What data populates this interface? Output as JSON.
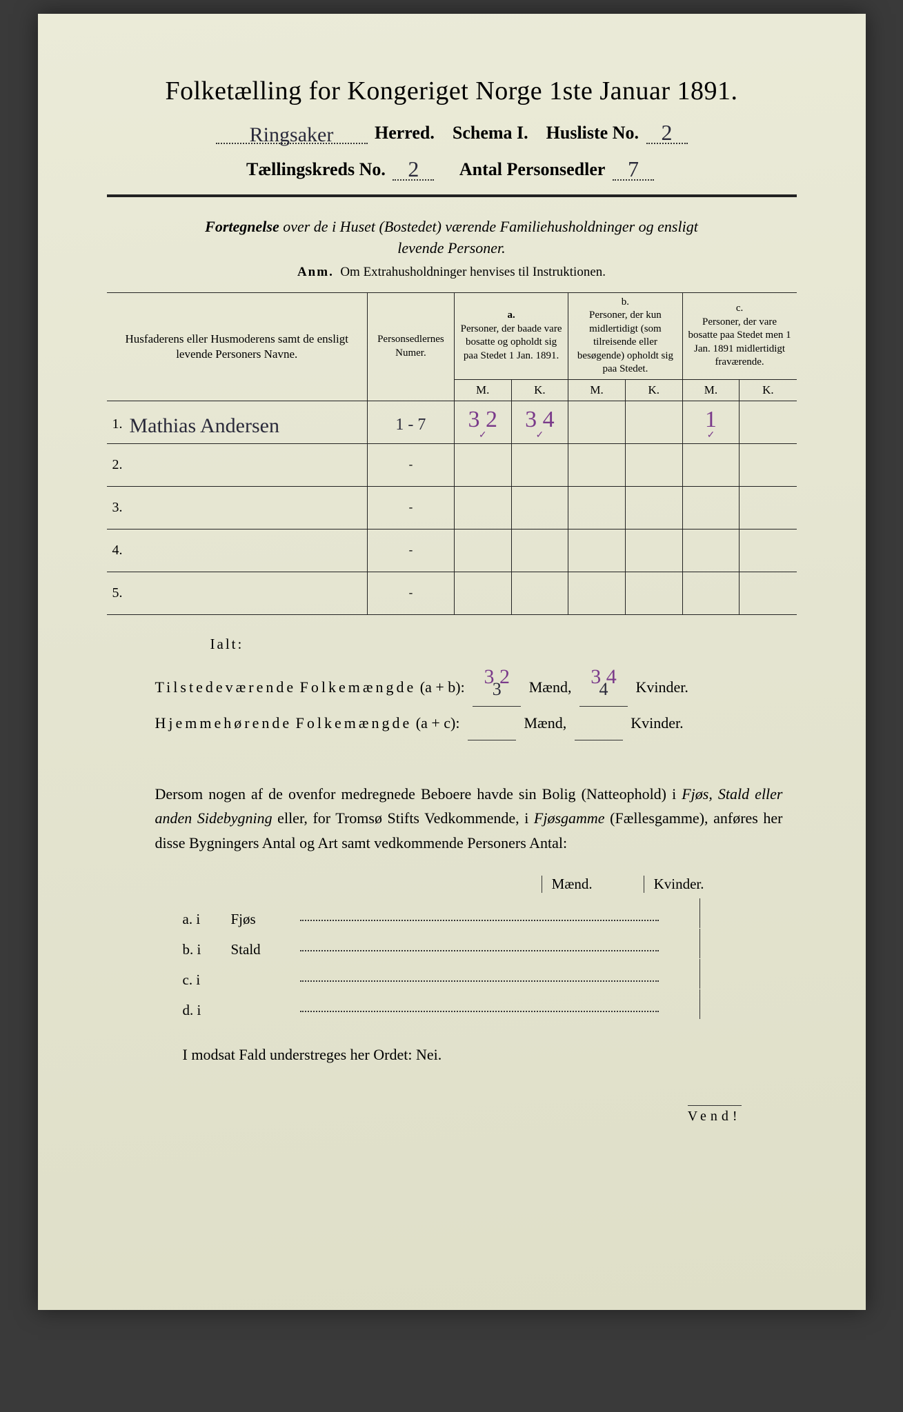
{
  "title": "Folketælling for Kongeriget Norge 1ste Januar 1891.",
  "header": {
    "herred_value": "Ringsaker",
    "herred_label": "Herred.",
    "schema_label": "Schema I.",
    "husliste_label": "Husliste No.",
    "husliste_value": "2",
    "kreds_label": "Tællingskreds No.",
    "kreds_value": "2",
    "personsedler_label": "Antal Personsedler",
    "personsedler_value": "7"
  },
  "subtitle": "Fortegnelse over de i Huset (Bostedet) værende Familiehusholdninger og ensligt levende Personer.",
  "anm_prefix": "Anm.",
  "anm_text": "Om Extrahusholdninger henvises til Instruktionen.",
  "table": {
    "col_name": "Husfaderens eller Husmoderens samt de ensligt levende Personers Navne.",
    "col_num": "Personsedlernes Numer.",
    "col_a_label": "a.",
    "col_a": "Personer, der baade vare bosatte og opholdt sig paa Stedet 1 Jan. 1891.",
    "col_b_label": "b.",
    "col_b": "Personer, der kun midlertidigt (som tilreisende eller besøgende) opholdt sig paa Stedet.",
    "col_c_label": "c.",
    "col_c": "Personer, der vare bosatte paa Stedet men 1 Jan. 1891 midlertidigt fraværende.",
    "m": "M.",
    "k": "K.",
    "rows": [
      {
        "num": "1.",
        "name": "Mathias Andersen",
        "sedler": "1 - 7",
        "a_m": "3 2",
        "a_k": "3 4",
        "b_m": "",
        "b_k": "",
        "c_m": "1",
        "c_k": ""
      },
      {
        "num": "2.",
        "name": "",
        "sedler": "-",
        "a_m": "",
        "a_k": "",
        "b_m": "",
        "b_k": "",
        "c_m": "",
        "c_k": ""
      },
      {
        "num": "3.",
        "name": "",
        "sedler": "-",
        "a_m": "",
        "a_k": "",
        "b_m": "",
        "b_k": "",
        "c_m": "",
        "c_k": ""
      },
      {
        "num": "4.",
        "name": "",
        "sedler": "-",
        "a_m": "",
        "a_k": "",
        "b_m": "",
        "b_k": "",
        "c_m": "",
        "c_k": ""
      },
      {
        "num": "5.",
        "name": "",
        "sedler": "-",
        "a_m": "",
        "a_k": "",
        "b_m": "",
        "b_k": "",
        "c_m": "",
        "c_k": ""
      }
    ]
  },
  "ialt": "Ialt:",
  "summary": {
    "line1_label": "Tilstedeværende",
    "folkem": "Folkemængde",
    "ab": "(a + b):",
    "line1_m_over": "3 2",
    "line1_m_under": "3",
    "maend": "Mænd,",
    "line1_k_over": "3 4",
    "line1_k_under": "4",
    "kvinder": "Kvinder.",
    "line2_label": "Hjemmehørende",
    "ac": "(a + c):"
  },
  "paragraph": "Dersom nogen af de ovenfor medregnede Beboere havde sin Bolig (Natteophold) i Fjøs, Stald eller anden Sidebygning eller, for Tromsø Stifts Vedkommende, i Fjøsgamme (Fællesgamme), anføres her disse Bygningers Antal og Art samt vedkommende Personers Antal:",
  "mk": {
    "m": "Mænd.",
    "k": "Kvinder."
  },
  "abcd": {
    "a": {
      "label": "a.  i",
      "word": "Fjøs"
    },
    "b": {
      "label": "b.  i",
      "word": "Stald"
    },
    "c": {
      "label": "c.  i",
      "word": ""
    },
    "d": {
      "label": "d.  i",
      "word": ""
    }
  },
  "modsat": "I modsat Fald understreges her Ordet: Nei.",
  "vend": "Vend!",
  "colors": {
    "paper": "#e8e8d8",
    "ink": "#222222",
    "handwriting": "#2a2a3a",
    "purple": "#7a3a8a"
  }
}
